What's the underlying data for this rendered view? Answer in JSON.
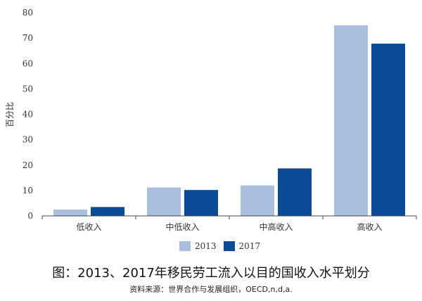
{
  "chart_data": {
    "type": "bar",
    "categories": [
      "低收入",
      "中低收入",
      "中高收入",
      "高收入"
    ],
    "series": [
      {
        "name": "2013",
        "values": [
          2.5,
          11.2,
          12.0,
          75.0
        ],
        "color": "#a9bfdd"
      },
      {
        "name": "2017",
        "values": [
          3.5,
          10.2,
          18.7,
          67.8
        ],
        "color": "#0b4a94"
      }
    ],
    "ylabel": "百分比",
    "ylim": [
      0,
      80
    ],
    "yticks": [
      0,
      10,
      20,
      30,
      40,
      50,
      60,
      70,
      80
    ],
    "grid": false,
    "legend_position": "bottom"
  },
  "caption": "图：2013、2017年移民劳工流入以目的国收入水平划分",
  "source": "资料来源：世界合作与发展组织，OECD,n,d,a."
}
